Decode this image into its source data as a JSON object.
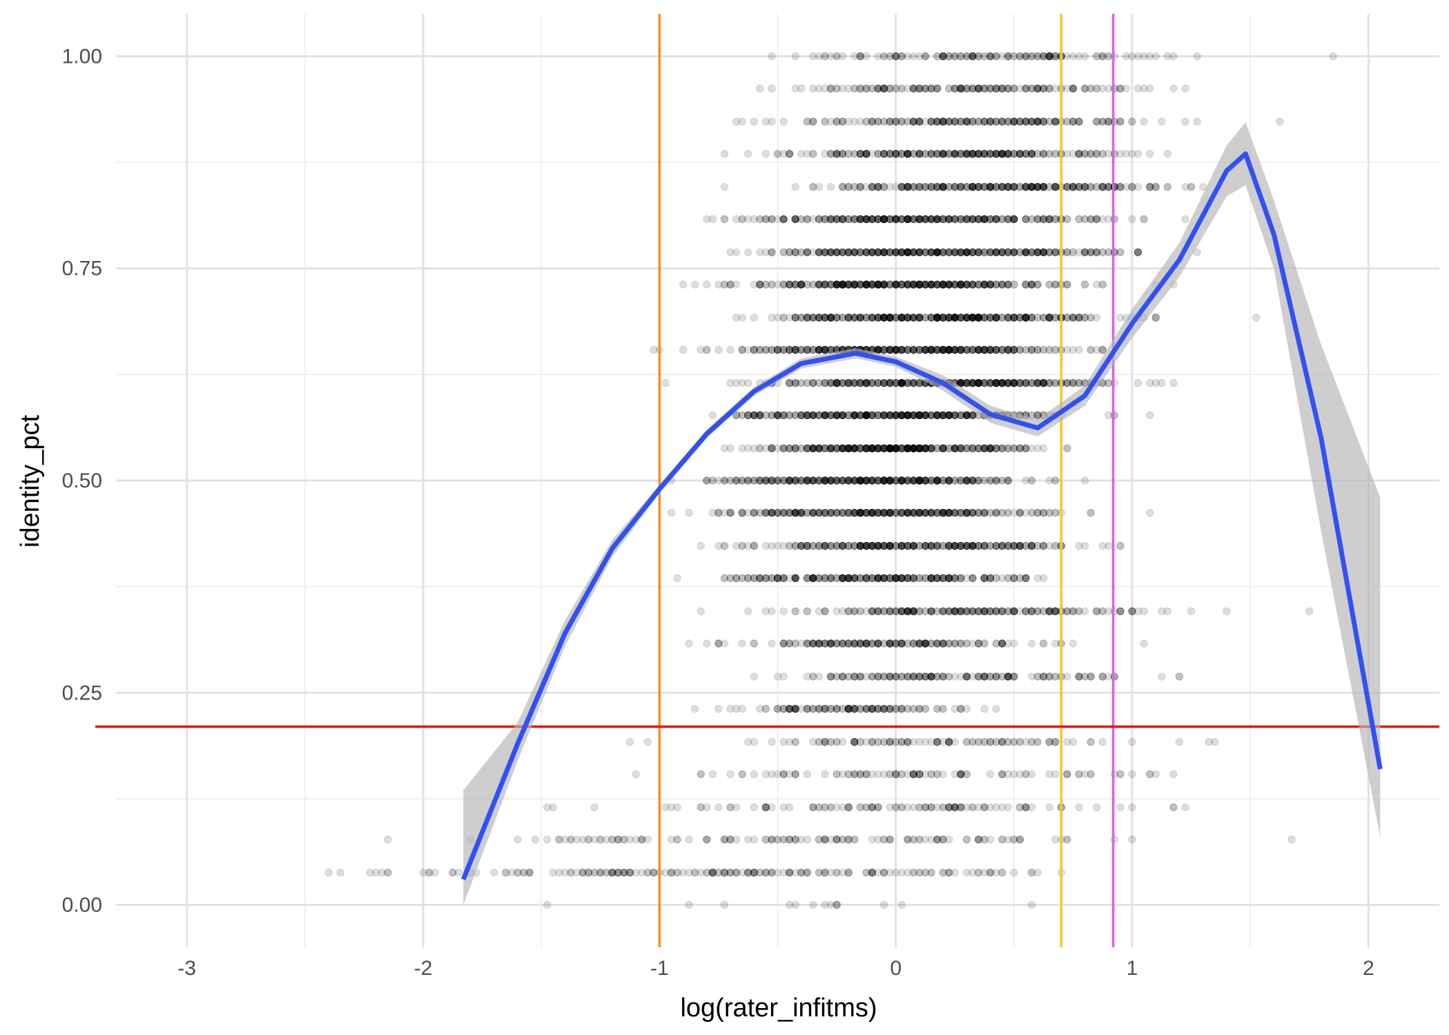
{
  "chart_data": {
    "type": "scatter",
    "title": "",
    "xlabel": "log(rater_infitms)",
    "ylabel": "identity_pct",
    "xlim": [
      -3.3,
      2.3
    ],
    "ylim": [
      -0.05,
      1.05
    ],
    "x_ticks": [
      -3,
      -2,
      -1,
      0,
      1,
      2
    ],
    "x_tick_labels": [
      "-3",
      "-2",
      "-1",
      "0",
      "1",
      "2"
    ],
    "y_ticks": [
      0.0,
      0.25,
      0.5,
      0.75,
      1.0
    ],
    "y_tick_labels": [
      "0.00",
      "0.25",
      "0.50",
      "0.75",
      "1.00"
    ],
    "grid": true,
    "points": {
      "color": "#000000",
      "opacity": 0.13,
      "levels": [
        {
          "y": 1.0,
          "range": [
            -0.9,
            1.85
          ],
          "n": 140
        },
        {
          "y": 0.962,
          "range": [
            -0.92,
            1.75
          ],
          "n": 170
        },
        {
          "y": 0.923,
          "range": [
            -0.92,
            1.78
          ],
          "n": 210
        },
        {
          "y": 0.885,
          "range": [
            -0.88,
            1.6
          ],
          "n": 260
        },
        {
          "y": 0.846,
          "range": [
            -0.84,
            1.83
          ],
          "n": 280
        },
        {
          "y": 0.808,
          "range": [
            -1.05,
            1.5
          ],
          "n": 330
        },
        {
          "y": 0.769,
          "range": [
            -1.05,
            1.65
          ],
          "n": 360
        },
        {
          "y": 0.731,
          "range": [
            -1.08,
            1.35
          ],
          "n": 380
        },
        {
          "y": 0.692,
          "range": [
            -0.95,
            1.55
          ],
          "n": 390
        },
        {
          "y": 0.654,
          "range": [
            -1.1,
            1.35
          ],
          "n": 400
        },
        {
          "y": 0.615,
          "range": [
            -1.0,
            1.6
          ],
          "n": 390
        },
        {
          "y": 0.577,
          "range": [
            -1.12,
            1.35
          ],
          "n": 380
        },
        {
          "y": 0.538,
          "range": [
            -0.9,
            1.1
          ],
          "n": 370
        },
        {
          "y": 0.5,
          "range": [
            -1.08,
            1.05
          ],
          "n": 350
        },
        {
          "y": 0.462,
          "range": [
            -1.15,
            1.25
          ],
          "n": 330
        },
        {
          "y": 0.423,
          "range": [
            -1.08,
            1.5
          ],
          "n": 300
        },
        {
          "y": 0.385,
          "range": [
            -1.08,
            1.15
          ],
          "n": 260
        },
        {
          "y": 0.346,
          "range": [
            -0.92,
            1.8
          ],
          "n": 220
        },
        {
          "y": 0.308,
          "range": [
            -1.08,
            1.2
          ],
          "n": 190
        },
        {
          "y": 0.269,
          "range": [
            -0.8,
            1.65
          ],
          "n": 160
        },
        {
          "y": 0.231,
          "range": [
            -0.95,
            0.8
          ],
          "n": 130
        },
        {
          "y": 0.192,
          "range": [
            -1.35,
            1.72
          ],
          "n": 110
        },
        {
          "y": 0.154,
          "range": [
            -1.3,
            1.72
          ],
          "n": 100
        },
        {
          "y": 0.115,
          "range": [
            -1.78,
            1.9
          ],
          "n": 110
        },
        {
          "y": 0.077,
          "range": [
            -2.3,
            1.83
          ],
          "n": 130
        },
        {
          "y": 0.038,
          "range": [
            -3.0,
            1.8
          ],
          "n": 190
        },
        {
          "y": 0.0,
          "range": [
            -1.52,
            0.78
          ],
          "n": 14
        }
      ]
    },
    "smooth": {
      "color": "#3251f2",
      "band_color": "#b3b3b3",
      "x": [
        -1.83,
        -1.6,
        -1.4,
        -1.2,
        -1.0,
        -0.8,
        -0.6,
        -0.4,
        -0.17,
        0.0,
        0.2,
        0.4,
        0.6,
        0.8,
        1.0,
        1.2,
        1.4,
        1.48,
        1.6,
        1.8,
        2.05
      ],
      "y": [
        0.03,
        0.19,
        0.32,
        0.42,
        0.49,
        0.555,
        0.605,
        0.638,
        0.65,
        0.64,
        0.615,
        0.578,
        0.562,
        0.6,
        0.685,
        0.76,
        0.865,
        0.885,
        0.79,
        0.55,
        0.16
      ],
      "lower": [
        0.0,
        0.17,
        0.305,
        0.41,
        0.485,
        0.55,
        0.6,
        0.632,
        0.644,
        0.634,
        0.606,
        0.568,
        0.552,
        0.588,
        0.668,
        0.74,
        0.835,
        0.848,
        0.75,
        0.44,
        0.08
      ],
      "upper": [
        0.135,
        0.215,
        0.335,
        0.43,
        0.495,
        0.56,
        0.61,
        0.644,
        0.656,
        0.646,
        0.624,
        0.588,
        0.572,
        0.612,
        0.702,
        0.78,
        0.895,
        0.922,
        0.83,
        0.66,
        0.48
      ]
    },
    "vlines": [
      {
        "x": -1.0,
        "color": "#f08f25"
      },
      {
        "x": 0.7,
        "color": "#f7c91f"
      },
      {
        "x": 0.92,
        "color": "#dd5fe8"
      }
    ],
    "hlines": [
      {
        "y": 0.21,
        "color": "#f50a0a"
      }
    ]
  }
}
